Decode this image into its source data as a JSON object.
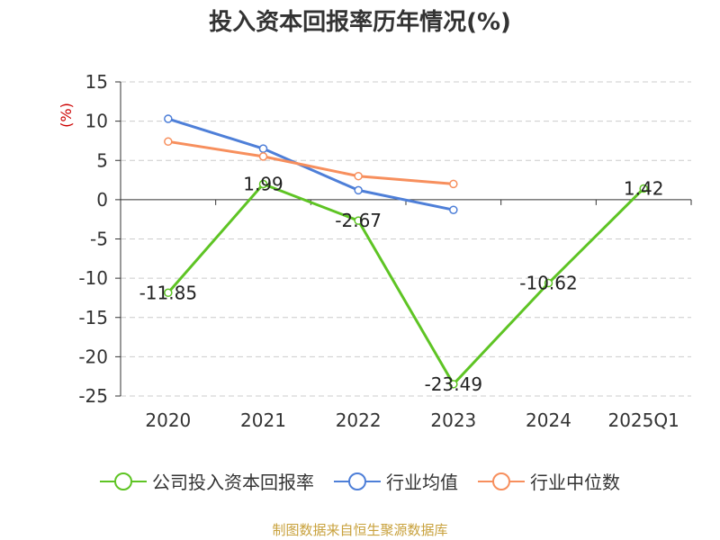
{
  "chart_data": {
    "type": "line",
    "title": "投入资本回报率历年情况(%)",
    "ylabel": "(%)",
    "xlabel": "",
    "categories": [
      "2020",
      "2021",
      "2022",
      "2023",
      "2024",
      "2025Q1"
    ],
    "ylim": [
      -25,
      15
    ],
    "yticks": [
      15,
      10,
      5,
      0,
      -5,
      -10,
      -15,
      -20,
      -25
    ],
    "grid": true,
    "legend_position": "bottom",
    "series": [
      {
        "name": "公司投入资本回报率",
        "color": "#5ec424",
        "values": [
          -11.85,
          1.99,
          -2.67,
          -23.49,
          -10.62,
          1.42
        ],
        "labels": [
          "-11.85",
          "1.99",
          "-2.67",
          "-23.49",
          "-10.62",
          "1.42"
        ]
      },
      {
        "name": "行业均值",
        "color": "#4e7fd8",
        "values": [
          10.3,
          6.5,
          1.2,
          -1.3,
          null,
          null
        ]
      },
      {
        "name": "行业中位数",
        "color": "#f78f5d",
        "values": [
          7.4,
          5.5,
          3.0,
          2.0,
          null,
          null
        ]
      }
    ]
  },
  "source": {
    "text": "制图数据来自恒生聚源数据库",
    "color": "#c8a13c"
  },
  "colors": {
    "axis": "#333333",
    "grid": "#cccccc",
    "ylabel": "#cc0000"
  }
}
